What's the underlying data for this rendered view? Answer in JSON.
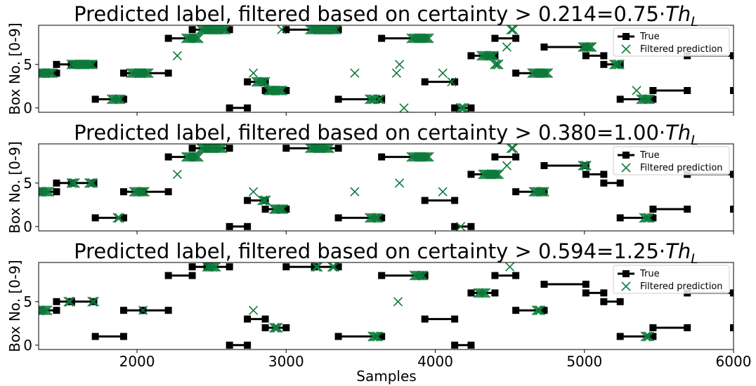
{
  "colors": {
    "true_line": "#000000",
    "prediction": "#0c7a3a",
    "legend_border": "#cccccc"
  },
  "xlabel": "Samples",
  "ylabel": "Box No. [0-9]",
  "legend": {
    "true_label": "True",
    "pred_label": "Filtered prediction",
    "loc": "upper right"
  },
  "chart_data": [
    {
      "type": "line+scatter",
      "title_prefix": "Predicted label, filtered based on certainty > 0.214=0.75·",
      "title_sym": "Th",
      "title_sub": "L",
      "xlim": [
        1340,
        6000
      ],
      "ylim": [
        -0.5,
        9.5
      ],
      "xticks": [
        2000,
        3000,
        4000,
        5000,
        6000
      ],
      "yticks": [
        0,
        5
      ],
      "true_segments": [
        [
          1340,
          1460,
          4
        ],
        [
          1460,
          1560,
          5
        ],
        [
          1560,
          1710,
          5
        ],
        [
          1720,
          1910,
          1
        ],
        [
          1910,
          2040,
          4
        ],
        [
          2040,
          2210,
          4
        ],
        [
          2210,
          2370,
          8
        ],
        [
          2370,
          2470,
          9
        ],
        [
          2470,
          2620,
          9
        ],
        [
          2620,
          2740,
          0
        ],
        [
          2740,
          2860,
          3
        ],
        [
          2860,
          3000,
          2
        ],
        [
          3000,
          3190,
          9
        ],
        [
          3190,
          3350,
          9
        ],
        [
          3350,
          3640,
          1
        ],
        [
          3640,
          3930,
          8
        ],
        [
          3930,
          4130,
          3
        ],
        [
          4130,
          4240,
          0
        ],
        [
          4240,
          4400,
          6
        ],
        [
          4400,
          4540,
          8
        ],
        [
          4540,
          4730,
          4
        ],
        [
          4730,
          5010,
          7
        ],
        [
          5010,
          5130,
          6
        ],
        [
          5130,
          5240,
          5
        ],
        [
          5240,
          5460,
          1
        ],
        [
          5460,
          5690,
          2
        ],
        [
          5690,
          6000,
          6
        ],
        [
          6000,
          6000,
          2
        ]
      ],
      "pred_groups": [
        [
          1340,
          1440,
          4,
          0.03
        ],
        [
          1560,
          1710,
          5,
          0.03
        ],
        [
          1830,
          1900,
          1,
          0.03
        ],
        [
          1960,
          2080,
          4,
          0.03
        ],
        [
          2270,
          2270,
          6,
          1
        ],
        [
          2330,
          2420,
          8,
          0.03
        ],
        [
          2430,
          2600,
          9,
          0.03
        ],
        [
          2780,
          2780,
          4,
          1
        ],
        [
          2800,
          2870,
          3,
          0.03
        ],
        [
          2880,
          2980,
          2,
          0.03
        ],
        [
          2970,
          2970,
          9,
          1
        ],
        [
          3160,
          3340,
          9,
          0.03
        ],
        [
          3460,
          3460,
          4,
          1
        ],
        [
          3560,
          3600,
          1,
          0.03
        ],
        [
          3620,
          3640,
          1,
          0.03
        ],
        [
          3840,
          3960,
          8,
          0.03
        ],
        [
          3740,
          3740,
          4,
          1
        ],
        [
          3760,
          3760,
          5,
          1
        ],
        [
          3790,
          3790,
          0,
          1
        ],
        [
          4050,
          4050,
          4,
          1
        ],
        [
          4110,
          4110,
          3,
          1
        ],
        [
          4170,
          4200,
          0,
          0.03
        ],
        [
          4310,
          4400,
          6,
          0.03
        ],
        [
          4400,
          4430,
          5,
          0.03
        ],
        [
          4480,
          4480,
          7,
          1
        ],
        [
          4510,
          4530,
          9,
          0.03
        ],
        [
          4650,
          4760,
          4,
          0.03
        ],
        [
          4990,
          5050,
          7,
          0.03
        ],
        [
          5200,
          5240,
          5,
          0.03
        ],
        [
          5350,
          5350,
          2,
          1
        ],
        [
          5380,
          5450,
          1,
          0.03
        ]
      ]
    },
    {
      "type": "line+scatter",
      "title_prefix": "Predicted label, filtered based on certainty > 0.380=1.00·",
      "title_sym": "Th",
      "title_sub": "L",
      "xlim": [
        1340,
        6000
      ],
      "ylim": [
        -0.5,
        9.5
      ],
      "xticks": [
        2000,
        3000,
        4000,
        5000,
        6000
      ],
      "yticks": [
        0,
        5
      ],
      "true_segments": [
        [
          1340,
          1460,
          4
        ],
        [
          1460,
          1560,
          5
        ],
        [
          1560,
          1710,
          5
        ],
        [
          1720,
          1910,
          1
        ],
        [
          1910,
          2040,
          4
        ],
        [
          2040,
          2210,
          4
        ],
        [
          2210,
          2370,
          8
        ],
        [
          2370,
          2470,
          9
        ],
        [
          2470,
          2620,
          9
        ],
        [
          2620,
          2740,
          0
        ],
        [
          2740,
          2860,
          3
        ],
        [
          2860,
          3000,
          2
        ],
        [
          3000,
          3190,
          9
        ],
        [
          3190,
          3350,
          9
        ],
        [
          3350,
          3640,
          1
        ],
        [
          3640,
          3930,
          8
        ],
        [
          3930,
          4130,
          3
        ],
        [
          4130,
          4240,
          0
        ],
        [
          4240,
          4400,
          6
        ],
        [
          4400,
          4540,
          8
        ],
        [
          4540,
          4730,
          4
        ],
        [
          4730,
          5010,
          7
        ],
        [
          5010,
          5130,
          6
        ],
        [
          5130,
          5240,
          5
        ],
        [
          5240,
          5460,
          1
        ],
        [
          5460,
          5690,
          2
        ],
        [
          5690,
          6000,
          6
        ],
        [
          6000,
          6000,
          2
        ]
      ],
      "pred_groups": [
        [
          1340,
          1420,
          4,
          0.03
        ],
        [
          1560,
          1590,
          5,
          0.03
        ],
        [
          1680,
          1710,
          5,
          0.03
        ],
        [
          1870,
          1890,
          1,
          0.03
        ],
        [
          1980,
          2060,
          4,
          0.03
        ],
        [
          2270,
          2270,
          6,
          1
        ],
        [
          2330,
          2420,
          8,
          0.03
        ],
        [
          2430,
          2580,
          9,
          0.03
        ],
        [
          2780,
          2780,
          4,
          1
        ],
        [
          2840,
          2870,
          3,
          0.03
        ],
        [
          2920,
          2980,
          2,
          0.03
        ],
        [
          3160,
          3300,
          9,
          0.03
        ],
        [
          3460,
          3460,
          4,
          1
        ],
        [
          3560,
          3620,
          1,
          0.03
        ],
        [
          3760,
          3760,
          5,
          1
        ],
        [
          3840,
          3960,
          8,
          0.03
        ],
        [
          4050,
          4050,
          4,
          1
        ],
        [
          4170,
          4170,
          0,
          1
        ],
        [
          4320,
          4430,
          6,
          0.03
        ],
        [
          4480,
          4480,
          7,
          1
        ],
        [
          4510,
          4530,
          9,
          0.03
        ],
        [
          4660,
          4740,
          4,
          0.03
        ],
        [
          4990,
          5020,
          7,
          0.03
        ],
        [
          5400,
          5440,
          1,
          0.03
        ]
      ]
    },
    {
      "type": "line+scatter",
      "title_prefix": "Predicted label, filtered based on certainty > 0.594=1.25·",
      "title_sym": "Th",
      "title_sub": "L",
      "xlim": [
        1340,
        6000
      ],
      "ylim": [
        -0.5,
        9.5
      ],
      "xticks": [
        2000,
        3000,
        4000,
        5000,
        6000
      ],
      "yticks": [
        0,
        5
      ],
      "true_segments": [
        [
          1340,
          1460,
          4
        ],
        [
          1460,
          1560,
          5
        ],
        [
          1560,
          1710,
          5
        ],
        [
          1720,
          1910,
          1
        ],
        [
          1910,
          2040,
          4
        ],
        [
          2040,
          2210,
          4
        ],
        [
          2210,
          2370,
          8
        ],
        [
          2370,
          2470,
          9
        ],
        [
          2470,
          2620,
          9
        ],
        [
          2620,
          2740,
          0
        ],
        [
          2740,
          2860,
          3
        ],
        [
          2860,
          3000,
          2
        ],
        [
          3000,
          3190,
          9
        ],
        [
          3190,
          3350,
          9
        ],
        [
          3350,
          3640,
          1
        ],
        [
          3640,
          3930,
          8
        ],
        [
          3930,
          4130,
          3
        ],
        [
          4130,
          4240,
          0
        ],
        [
          4240,
          4400,
          6
        ],
        [
          4400,
          4540,
          8
        ],
        [
          4540,
          4730,
          4
        ],
        [
          4730,
          5010,
          7
        ],
        [
          5010,
          5130,
          6
        ],
        [
          5130,
          5240,
          5
        ],
        [
          5240,
          5460,
          1
        ],
        [
          5460,
          5690,
          2
        ],
        [
          5690,
          6000,
          6
        ],
        [
          6000,
          6000,
          2
        ]
      ],
      "pred_groups": [
        [
          1340,
          1400,
          4,
          0.03
        ],
        [
          1540,
          1560,
          5,
          0.03
        ],
        [
          1700,
          1720,
          5,
          0.03
        ],
        [
          2040,
          2040,
          4,
          1
        ],
        [
          2470,
          2540,
          9,
          0.03
        ],
        [
          2780,
          2780,
          4,
          1
        ],
        [
          2920,
          2950,
          2,
          0.03
        ],
        [
          3200,
          3220,
          9,
          0.03
        ],
        [
          3310,
          3330,
          9,
          0.03
        ],
        [
          3580,
          3620,
          1,
          0.03
        ],
        [
          3750,
          3750,
          5,
          1
        ],
        [
          3860,
          3920,
          8,
          0.03
        ],
        [
          4290,
          4340,
          6,
          0.03
        ],
        [
          4500,
          4500,
          9,
          1
        ],
        [
          4680,
          4710,
          4,
          0.03
        ],
        [
          5410,
          5440,
          1,
          0.03
        ]
      ]
    }
  ]
}
